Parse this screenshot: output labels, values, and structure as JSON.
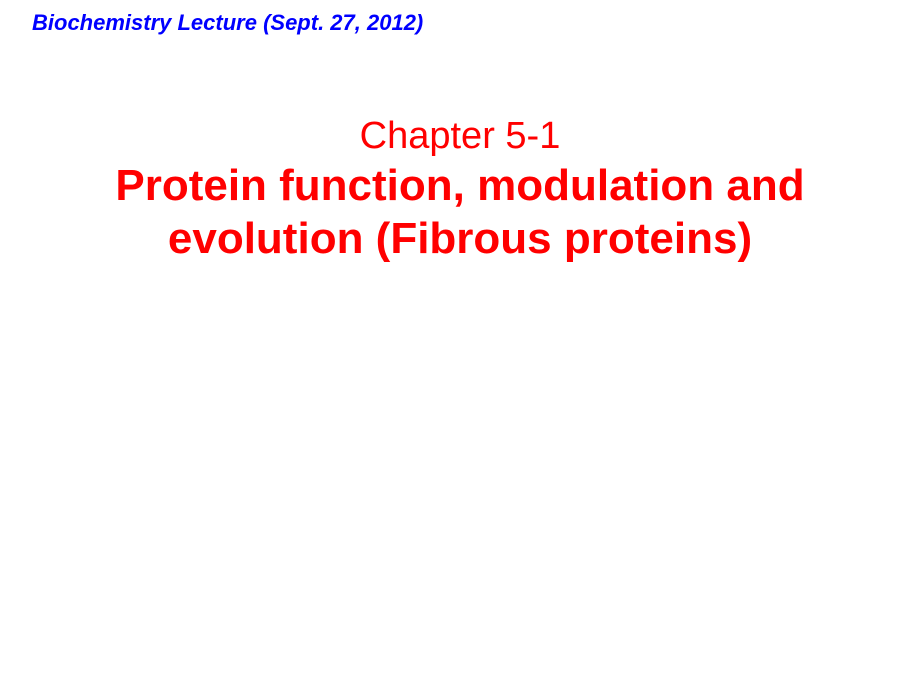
{
  "header": {
    "text": "Biochemistry Lecture  (Sept. 27, 2012)",
    "color": "#0000ff",
    "fontsize": 22
  },
  "chapter": {
    "label": "Chapter 5-1",
    "color": "#ff0000",
    "fontsize": 38
  },
  "title": {
    "line1": "Protein function, modulation and",
    "line2": "evolution (Fibrous proteins)",
    "color": "#ff0000",
    "fontsize": 44
  },
  "background_color": "#ffffff"
}
